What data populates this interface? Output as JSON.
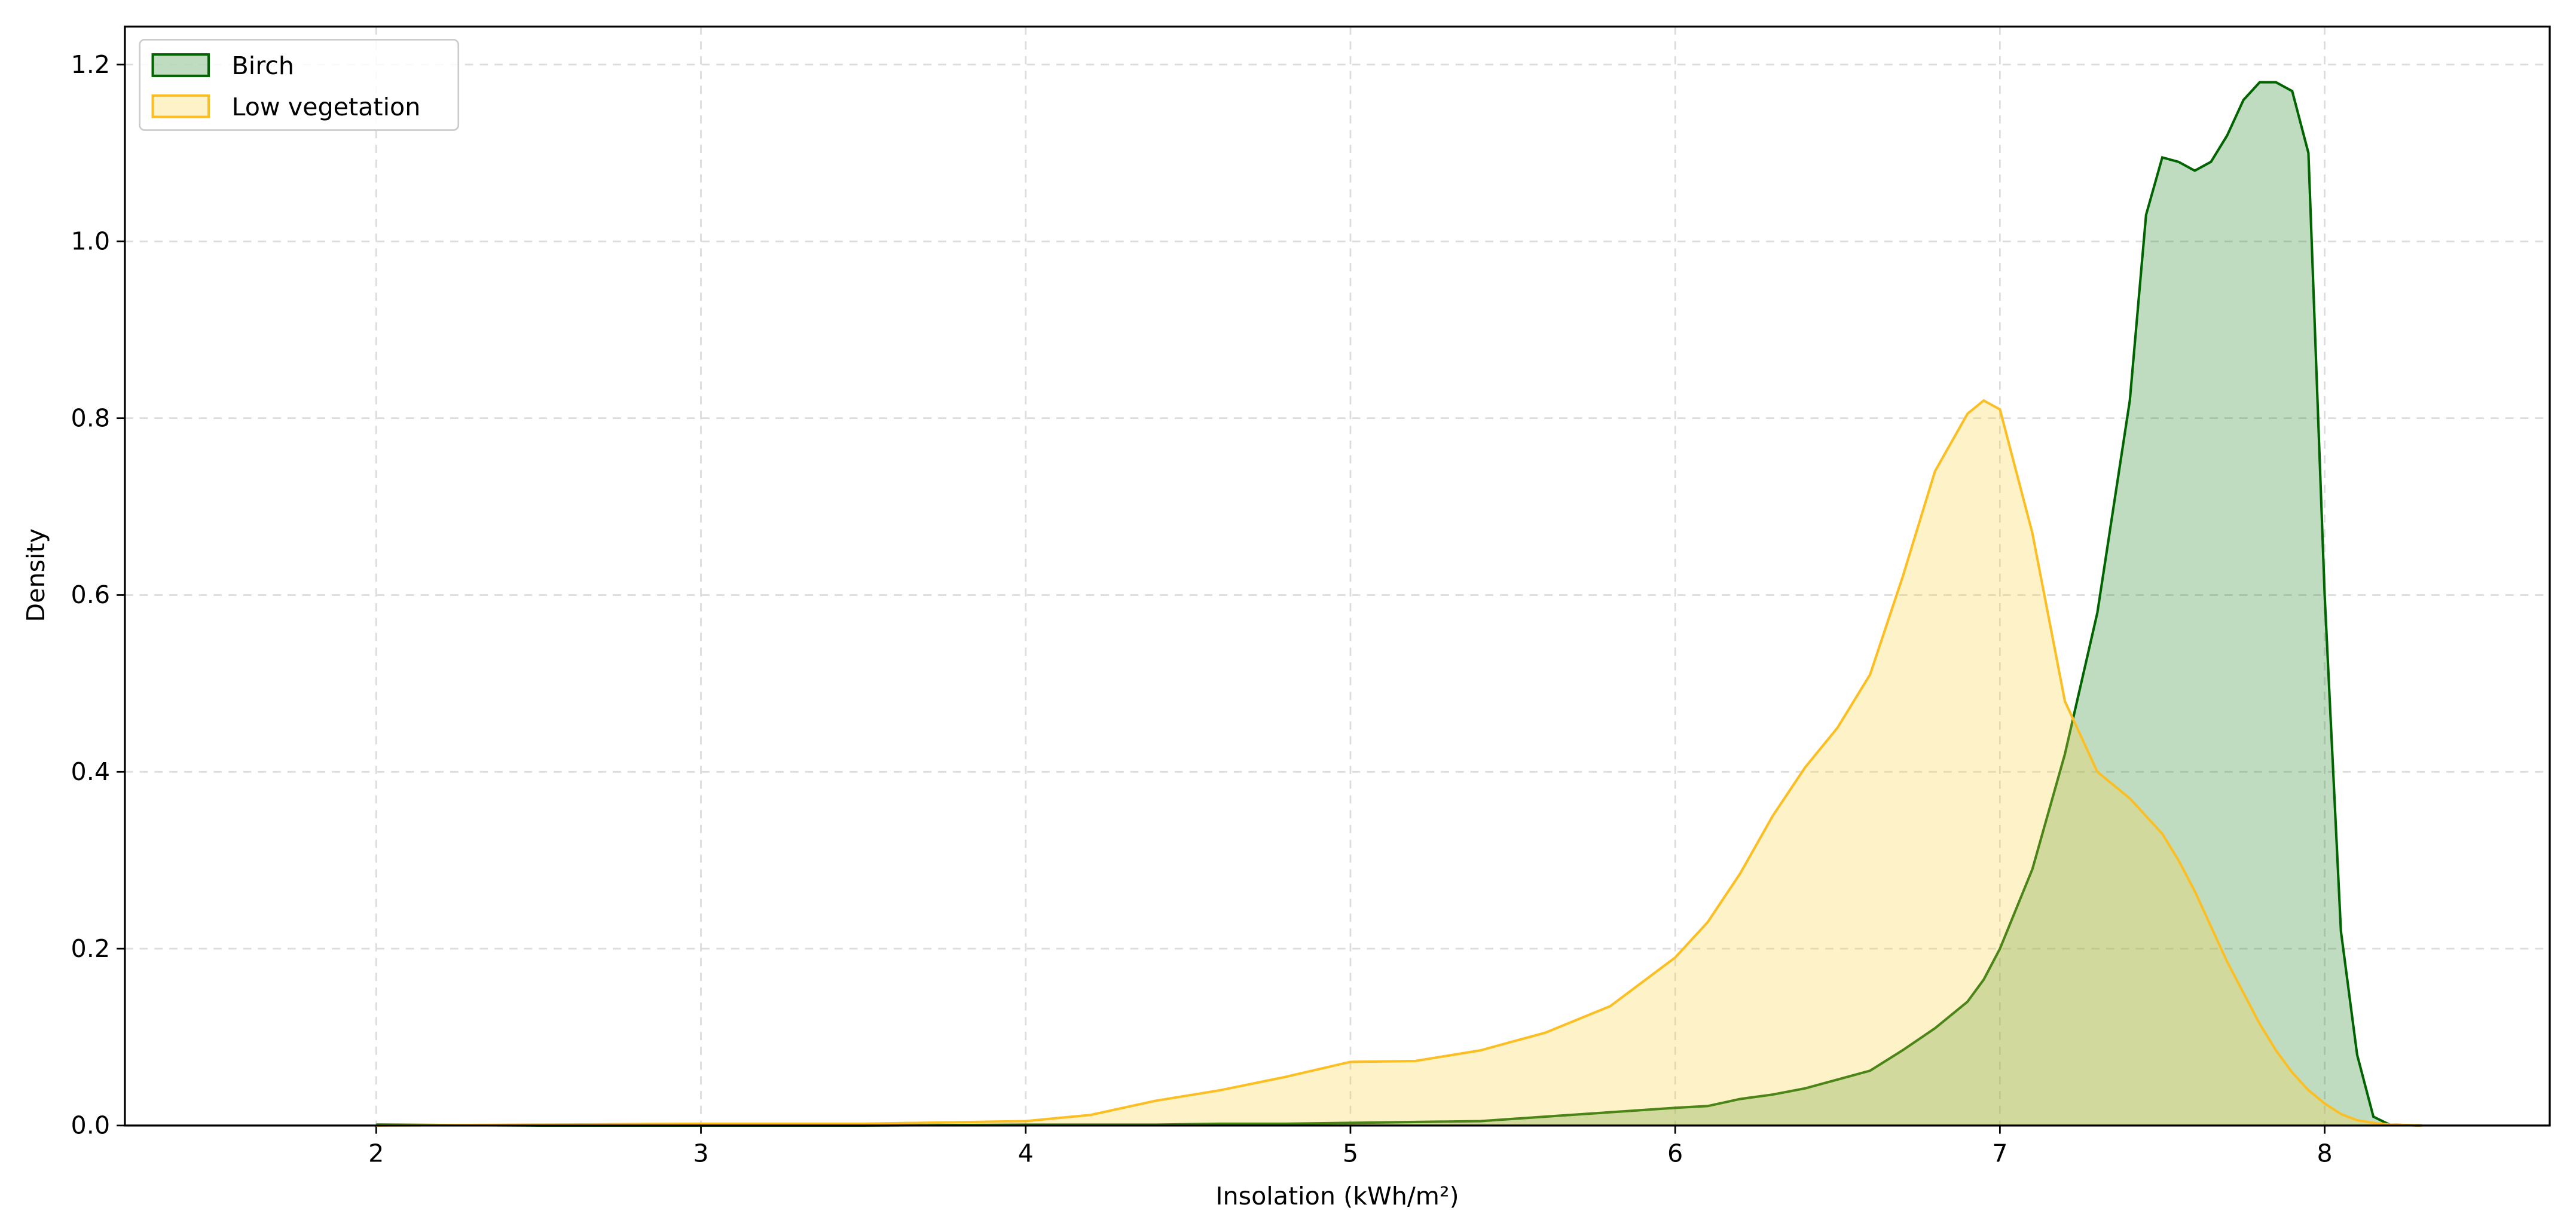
{
  "chart_data": {
    "type": "area",
    "xlabel": "Insolation (kWh/m²)",
    "ylabel": "Density",
    "x": [
      2.0,
      2.5,
      3.0,
      3.5,
      4.0,
      4.2,
      4.4,
      4.6,
      4.8,
      5.0,
      5.2,
      5.4,
      5.6,
      5.8,
      6.0,
      6.1,
      6.2,
      6.3,
      6.4,
      6.5,
      6.6,
      6.7,
      6.8,
      6.9,
      6.95,
      7.0,
      7.1,
      7.2,
      7.3,
      7.4,
      7.45,
      7.5,
      7.55,
      7.6,
      7.65,
      7.7,
      7.75,
      7.8,
      7.85,
      7.9,
      7.95,
      8.0,
      8.05,
      8.1,
      8.15,
      8.2,
      8.3
    ],
    "series": [
      {
        "name": "Birch",
        "color": "#006400",
        "fill": "#2e8b2e",
        "values": [
          0.001,
          0.0,
          0.0,
          0.0,
          0.001,
          0.001,
          0.001,
          0.002,
          0.002,
          0.003,
          0.004,
          0.005,
          0.01,
          0.015,
          0.02,
          0.022,
          0.03,
          0.035,
          0.042,
          0.052,
          0.062,
          0.085,
          0.11,
          0.14,
          0.165,
          0.2,
          0.29,
          0.42,
          0.58,
          0.82,
          1.03,
          1.095,
          1.09,
          1.08,
          1.09,
          1.12,
          1.16,
          1.18,
          1.18,
          1.17,
          1.1,
          0.6,
          0.22,
          0.08,
          0.01,
          0.001,
          0.0
        ]
      },
      {
        "name": "Low vegetation",
        "color": "#fbbf24",
        "fill": "#fcd34d",
        "values": [
          0.0,
          0.001,
          0.002,
          0.002,
          0.005,
          0.012,
          0.028,
          0.04,
          0.055,
          0.072,
          0.073,
          0.085,
          0.105,
          0.135,
          0.19,
          0.23,
          0.285,
          0.35,
          0.405,
          0.45,
          0.51,
          0.62,
          0.74,
          0.805,
          0.82,
          0.81,
          0.67,
          0.48,
          0.4,
          0.37,
          0.35,
          0.33,
          0.3,
          0.265,
          0.225,
          0.185,
          0.15,
          0.115,
          0.085,
          0.06,
          0.04,
          0.025,
          0.013,
          0.006,
          0.003,
          0.001,
          0.0
        ]
      }
    ],
    "xlim": [
      1.226,
      8.693
    ],
    "ylim": [
      0,
      1.243
    ],
    "xticks": [
      2,
      3,
      4,
      5,
      6,
      7,
      8
    ],
    "yticks": [
      {
        "value": 0,
        "label": "0.0"
      },
      0.2,
      0.4,
      0.6,
      0.8,
      {
        "value": 1,
        "label": "1.0"
      },
      1.2
    ],
    "grid": true,
    "legend": "upper left",
    "fill_opacity": 0.3
  }
}
